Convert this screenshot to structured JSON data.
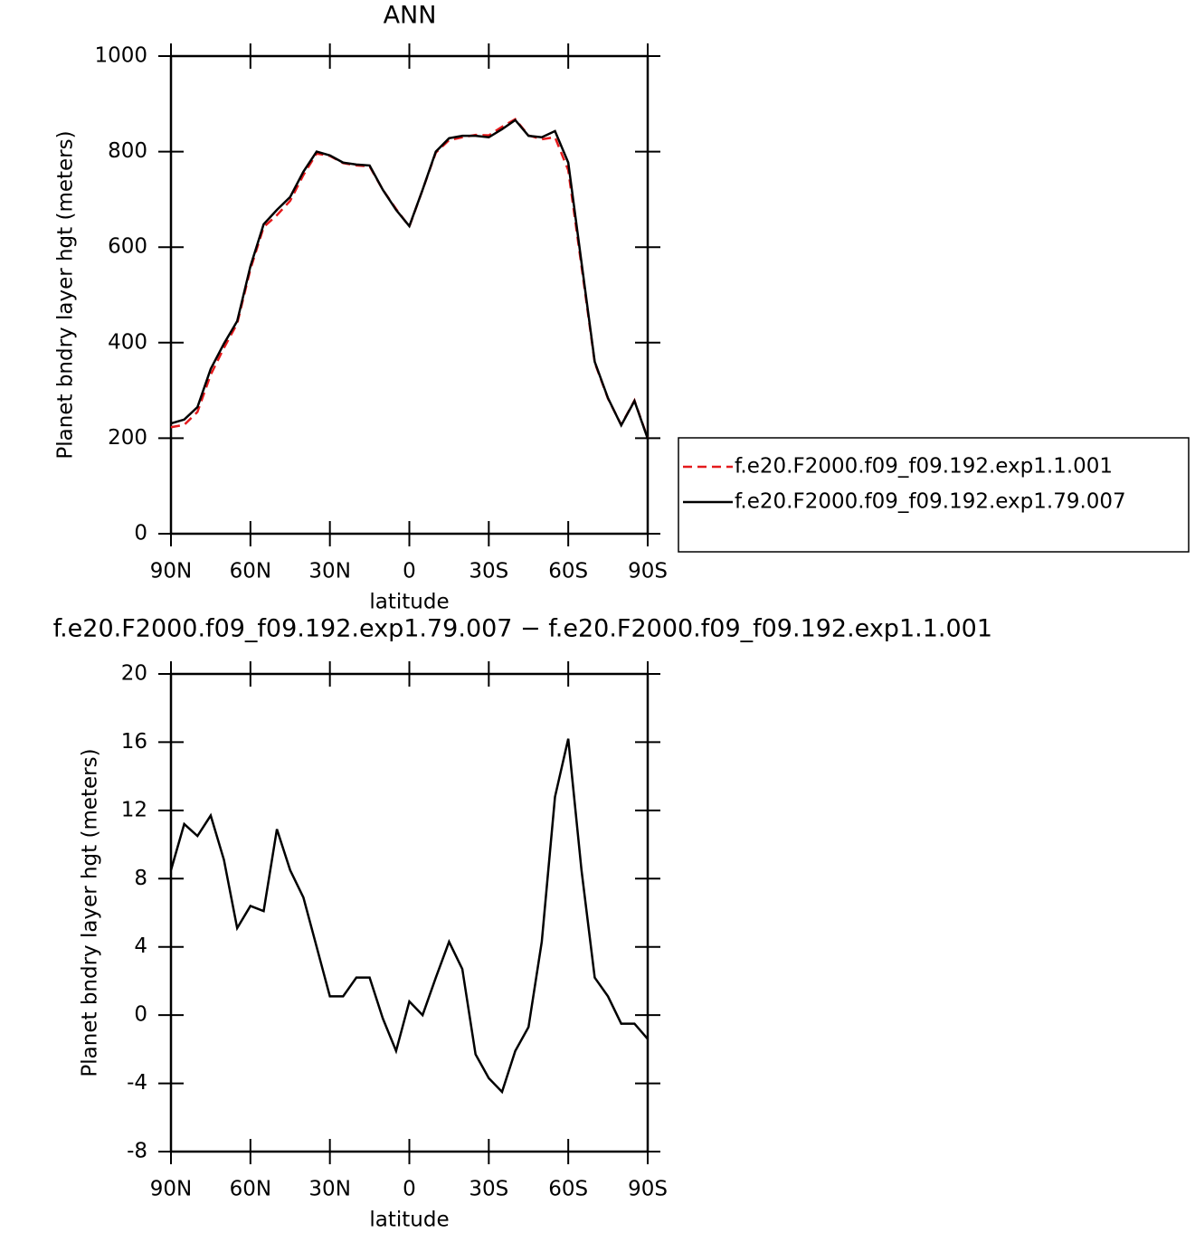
{
  "chart_data": [
    {
      "type": "line",
      "title": "ANN",
      "x_label": "latitude",
      "y_label": "Planet bndry layer hgt (meters)",
      "x": [
        90,
        85,
        80,
        75,
        70,
        65,
        60,
        55,
        50,
        45,
        40,
        35,
        30,
        25,
        20,
        15,
        10,
        5,
        0,
        -5,
        -10,
        -15,
        -20,
        -25,
        -30,
        -35,
        -40,
        -45,
        -50,
        -55,
        -60,
        -65,
        -70,
        -75,
        -80,
        -85,
        -90
      ],
      "series": [
        {
          "name": "f.e20.F2000.f09_f09.192.exp1.1.001",
          "color": "#e41a1c",
          "linestyle": "dashed",
          "values": [
            223,
            228,
            255,
            333,
            389,
            440,
            554,
            642,
            667,
            697,
            751,
            796,
            791,
            776,
            771,
            769,
            720,
            680,
            643,
            720,
            798,
            824,
            830,
            835,
            834,
            852,
            868,
            834,
            826,
            830,
            761,
            560,
            358,
            283,
            228,
            279,
            200
          ]
        },
        {
          "name": "f.e20.F2000.f09_f09.192.exp1.79.007",
          "color": "#000000",
          "linestyle": "solid",
          "values": [
            231,
            239,
            265,
            345,
            398,
            445,
            560,
            648,
            678,
            705,
            758,
            800,
            792,
            777,
            773,
            771,
            720,
            678,
            644,
            720,
            800,
            828,
            833,
            833,
            830,
            847,
            866,
            833,
            830,
            843,
            777,
            568,
            360,
            284,
            227,
            278,
            199
          ]
        }
      ],
      "xlim": [
        90,
        -90
      ],
      "xticks": [
        {
          "value": 90,
          "label": "90N"
        },
        {
          "value": 60,
          "label": "60N"
        },
        {
          "value": 30,
          "label": "30N"
        },
        0,
        {
          "value": -30,
          "label": "30S"
        },
        {
          "value": -60,
          "label": "60S"
        },
        {
          "value": -90,
          "label": "90S"
        }
      ],
      "ylim": [
        0,
        1000
      ],
      "yticks": [
        0,
        200,
        400,
        600,
        800,
        1000
      ],
      "legend": "right"
    },
    {
      "type": "line",
      "title": "f.e20.F2000.f09_f09.192.exp1.79.007 − f.e20.F2000.f09_f09.192.exp1.1.001",
      "x_label": "latitude",
      "y_label": "Planet bndry layer hgt (meters)",
      "x": [
        90,
        85,
        80,
        75,
        70,
        65,
        60,
        55,
        50,
        45,
        40,
        35,
        30,
        25,
        20,
        15,
        10,
        5,
        0,
        -5,
        -10,
        -15,
        -20,
        -25,
        -30,
        -35,
        -40,
        -45,
        -50,
        -55,
        -60,
        -65,
        -70,
        -75,
        -80,
        -85,
        -90
      ],
      "series": [
        {
          "color": "#000000",
          "linestyle": "solid",
          "values": [
            8.5,
            11.2,
            10.5,
            11.7,
            9.1,
            5.1,
            6.4,
            6.1,
            10.9,
            8.5,
            6.9,
            4.0,
            1.1,
            1.1,
            2.2,
            2.2,
            -0.2,
            -2.1,
            0.8,
            0,
            2.2,
            4.3,
            2.7,
            -2.3,
            -3.7,
            -4.5,
            -2.1,
            -0.7,
            4.3,
            12.8,
            16.2,
            8.5,
            2.2,
            1.1,
            -0.5,
            -0.5,
            -1.4
          ]
        }
      ],
      "xlim": [
        90,
        -90
      ],
      "xticks": [
        {
          "value": 90,
          "label": "90N"
        },
        {
          "value": 60,
          "label": "60N"
        },
        {
          "value": 30,
          "label": "30N"
        },
        0,
        {
          "value": -30,
          "label": "30S"
        },
        {
          "value": -60,
          "label": "60S"
        },
        {
          "value": -90,
          "label": "90S"
        }
      ],
      "ylim": [
        -8,
        20
      ],
      "yticks": [
        -8,
        -4,
        0,
        4,
        8,
        12,
        16,
        20
      ]
    }
  ]
}
